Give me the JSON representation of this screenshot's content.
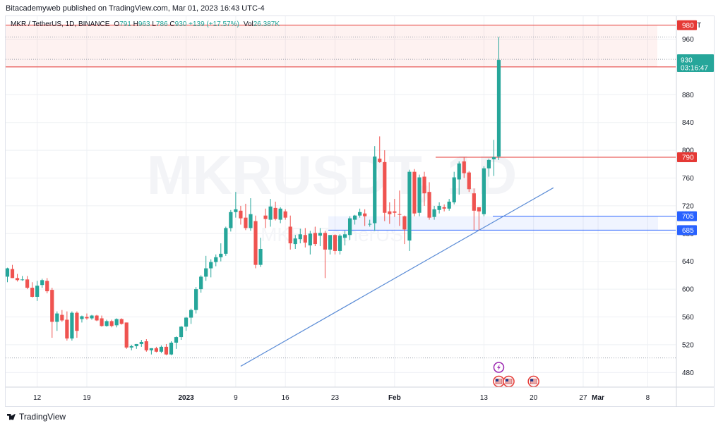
{
  "header": {
    "publish_line": "Bitacademyweb published on TradingView.com, Mar 01, 2023 16:43 UTC-4"
  },
  "legend": {
    "symbol": "MKR / TetherUS, 1D, BINANCE",
    "open_label": "O",
    "open": "791",
    "high_label": "H",
    "high": "963",
    "low_label": "L",
    "low": "786",
    "close_label": "C",
    "close": "930",
    "change": "+139 (+17.57%)",
    "vol_label": "Vol",
    "vol": "26.387K"
  },
  "watermark": {
    "main": "MKRUSDT, 1D",
    "sub": "MKR / TetherUS"
  },
  "branding": {
    "label": "TradingView"
  },
  "colors": {
    "up": "#26a69a",
    "down": "#ef5350",
    "trend": "#5b8cd6",
    "resistance": "#e53935",
    "support": "#2962ff",
    "grid": "#eef0f4"
  },
  "chart_data": {
    "type": "candlestick",
    "currency": "USDT",
    "y_ticks": [
      480,
      520,
      560,
      600,
      640,
      680,
      720,
      760,
      800,
      840,
      880,
      920,
      960
    ],
    "ylim": [
      459,
      993
    ],
    "x_ticks": [
      "12",
      "19",
      "2023",
      "9",
      "16",
      "23",
      "Feb",
      "13",
      "20",
      "27",
      "Mar",
      "8"
    ],
    "last_price": "930",
    "countdown": "03:16:47",
    "levels": [
      {
        "label": "980",
        "value": 980,
        "color": "#e53935",
        "style": "solid",
        "tag": "red"
      },
      {
        "label": "920",
        "value": 920,
        "color": "#e53935",
        "style": "solid",
        "tag": "red"
      },
      {
        "label": "790",
        "value": 790,
        "color": "#e53935",
        "style": "solid",
        "tag": "red"
      },
      {
        "label": "705",
        "value": 705,
        "color": "#2962ff",
        "style": "solid",
        "tag": "blue"
      },
      {
        "label": "685",
        "value": 685,
        "color": "#2962ff",
        "style": "solid",
        "tag": "blue"
      }
    ],
    "dotted_levels": [
      963,
      931,
      501
    ],
    "resistance_zone": [
      920,
      980
    ],
    "support_zone": [
      685,
      705
    ],
    "trendline": {
      "start_bar": 47,
      "start_value": 489,
      "end_bar": 110,
      "end_value": 746
    },
    "candles": [
      {
        "o": 618,
        "h": 631,
        "l": 610,
        "c": 630
      },
      {
        "o": 629,
        "h": 635,
        "l": 616,
        "c": 616
      },
      {
        "o": 616,
        "h": 622,
        "l": 611,
        "c": 613
      },
      {
        "o": 613,
        "h": 619,
        "l": 612,
        "c": 614
      },
      {
        "o": 614,
        "h": 619,
        "l": 600,
        "c": 602
      },
      {
        "o": 602,
        "h": 610,
        "l": 588,
        "c": 589
      },
      {
        "o": 589,
        "h": 612,
        "l": 583,
        "c": 605
      },
      {
        "o": 606,
        "h": 615,
        "l": 602,
        "c": 613
      },
      {
        "o": 612,
        "h": 616,
        "l": 594,
        "c": 597
      },
      {
        "o": 599,
        "h": 602,
        "l": 530,
        "c": 553
      },
      {
        "o": 553,
        "h": 568,
        "l": 540,
        "c": 565
      },
      {
        "o": 563,
        "h": 570,
        "l": 553,
        "c": 555
      },
      {
        "o": 556,
        "h": 568,
        "l": 526,
        "c": 529
      },
      {
        "o": 529,
        "h": 568,
        "l": 526,
        "c": 566
      },
      {
        "o": 566,
        "h": 568,
        "l": 530,
        "c": 540
      },
      {
        "o": 557,
        "h": 562,
        "l": 552,
        "c": 561
      },
      {
        "o": 560,
        "h": 565,
        "l": 556,
        "c": 558
      },
      {
        "o": 558,
        "h": 563,
        "l": 556,
        "c": 562
      },
      {
        "o": 562,
        "h": 563,
        "l": 554,
        "c": 555
      },
      {
        "o": 558,
        "h": 562,
        "l": 546,
        "c": 547
      },
      {
        "o": 547,
        "h": 556,
        "l": 546,
        "c": 554
      },
      {
        "o": 554,
        "h": 556,
        "l": 545,
        "c": 547
      },
      {
        "o": 548,
        "h": 558,
        "l": 545,
        "c": 557
      },
      {
        "o": 557,
        "h": 558,
        "l": 549,
        "c": 550
      },
      {
        "o": 552,
        "h": 552,
        "l": 514,
        "c": 516
      },
      {
        "o": 516,
        "h": 520,
        "l": 512,
        "c": 518
      },
      {
        "o": 518,
        "h": 521,
        "l": 514,
        "c": 521
      },
      {
        "o": 521,
        "h": 527,
        "l": 517,
        "c": 524
      },
      {
        "o": 525,
        "h": 528,
        "l": 510,
        "c": 512
      },
      {
        "o": 512,
        "h": 515,
        "l": 506,
        "c": 515
      },
      {
        "o": 515,
        "h": 517,
        "l": 509,
        "c": 510
      },
      {
        "o": 510,
        "h": 519,
        "l": 508,
        "c": 517
      },
      {
        "o": 517,
        "h": 521,
        "l": 505,
        "c": 506
      },
      {
        "o": 506,
        "h": 525,
        "l": 505,
        "c": 523
      },
      {
        "o": 523,
        "h": 532,
        "l": 514,
        "c": 531
      },
      {
        "o": 531,
        "h": 547,
        "l": 527,
        "c": 546
      },
      {
        "o": 546,
        "h": 560,
        "l": 540,
        "c": 559
      },
      {
        "o": 559,
        "h": 572,
        "l": 550,
        "c": 570
      },
      {
        "o": 570,
        "h": 603,
        "l": 565,
        "c": 600
      },
      {
        "o": 600,
        "h": 620,
        "l": 595,
        "c": 618
      },
      {
        "o": 618,
        "h": 648,
        "l": 612,
        "c": 630
      },
      {
        "o": 630,
        "h": 643,
        "l": 617,
        "c": 639
      },
      {
        "o": 639,
        "h": 650,
        "l": 633,
        "c": 646
      },
      {
        "o": 646,
        "h": 666,
        "l": 640,
        "c": 651
      },
      {
        "o": 651,
        "h": 690,
        "l": 648,
        "c": 688
      },
      {
        "o": 688,
        "h": 714,
        "l": 683,
        "c": 711
      },
      {
        "o": 711,
        "h": 740,
        "l": 703,
        "c": 715
      },
      {
        "o": 713,
        "h": 720,
        "l": 693,
        "c": 702
      },
      {
        "o": 703,
        "h": 723,
        "l": 685,
        "c": 688
      },
      {
        "o": 688,
        "h": 731,
        "l": 684,
        "c": 708
      },
      {
        "o": 698,
        "h": 706,
        "l": 630,
        "c": 635
      },
      {
        "o": 635,
        "h": 674,
        "l": 632,
        "c": 658
      },
      {
        "o": 706,
        "h": 716,
        "l": 688,
        "c": 701
      },
      {
        "o": 700,
        "h": 730,
        "l": 690,
        "c": 719
      },
      {
        "o": 717,
        "h": 726,
        "l": 699,
        "c": 701
      },
      {
        "o": 700,
        "h": 718,
        "l": 695,
        "c": 716
      },
      {
        "o": 712,
        "h": 715,
        "l": 700,
        "c": 703
      },
      {
        "o": 690,
        "h": 706,
        "l": 657,
        "c": 666
      },
      {
        "o": 665,
        "h": 678,
        "l": 658,
        "c": 673
      },
      {
        "o": 672,
        "h": 687,
        "l": 666,
        "c": 679
      },
      {
        "o": 678,
        "h": 688,
        "l": 660,
        "c": 667
      },
      {
        "o": 663,
        "h": 684,
        "l": 650,
        "c": 680
      },
      {
        "o": 681,
        "h": 690,
        "l": 662,
        "c": 665
      },
      {
        "o": 677,
        "h": 688,
        "l": 662,
        "c": 681
      },
      {
        "o": 681,
        "h": 684,
        "l": 616,
        "c": 657
      },
      {
        "o": 657,
        "h": 676,
        "l": 650,
        "c": 678
      },
      {
        "o": 678,
        "h": 679,
        "l": 650,
        "c": 655
      },
      {
        "o": 655,
        "h": 679,
        "l": 650,
        "c": 677
      },
      {
        "o": 674,
        "h": 684,
        "l": 663,
        "c": 679
      },
      {
        "o": 678,
        "h": 705,
        "l": 671,
        "c": 702
      },
      {
        "o": 700,
        "h": 707,
        "l": 693,
        "c": 706
      },
      {
        "o": 706,
        "h": 716,
        "l": 703,
        "c": 711
      },
      {
        "o": 709,
        "h": 715,
        "l": 691,
        "c": 705
      },
      {
        "o": 693,
        "h": 700,
        "l": 690,
        "c": 694
      },
      {
        "o": 695,
        "h": 806,
        "l": 684,
        "c": 791
      },
      {
        "o": 788,
        "h": 820,
        "l": 782,
        "c": 783
      },
      {
        "o": 783,
        "h": 800,
        "l": 698,
        "c": 710
      },
      {
        "o": 712,
        "h": 725,
        "l": 694,
        "c": 708
      },
      {
        "o": 712,
        "h": 730,
        "l": 704,
        "c": 710
      },
      {
        "o": 708,
        "h": 742,
        "l": 691,
        "c": 707
      },
      {
        "o": 705,
        "h": 706,
        "l": 665,
        "c": 686
      },
      {
        "o": 670,
        "h": 772,
        "l": 655,
        "c": 769
      },
      {
        "o": 769,
        "h": 773,
        "l": 705,
        "c": 709
      },
      {
        "o": 710,
        "h": 765,
        "l": 705,
        "c": 761
      },
      {
        "o": 762,
        "h": 769,
        "l": 720,
        "c": 738
      },
      {
        "o": 740,
        "h": 754,
        "l": 700,
        "c": 703
      },
      {
        "o": 704,
        "h": 720,
        "l": 700,
        "c": 715
      },
      {
        "o": 714,
        "h": 725,
        "l": 709,
        "c": 720
      },
      {
        "o": 718,
        "h": 722,
        "l": 712,
        "c": 716
      },
      {
        "o": 716,
        "h": 730,
        "l": 713,
        "c": 726
      },
      {
        "o": 725,
        "h": 769,
        "l": 722,
        "c": 761
      },
      {
        "o": 758,
        "h": 784,
        "l": 736,
        "c": 781
      },
      {
        "o": 784,
        "h": 790,
        "l": 760,
        "c": 767
      },
      {
        "o": 768,
        "h": 770,
        "l": 740,
        "c": 744
      },
      {
        "o": 738,
        "h": 745,
        "l": 685,
        "c": 713
      },
      {
        "o": 718,
        "h": 718,
        "l": 685,
        "c": 712
      },
      {
        "o": 708,
        "h": 777,
        "l": 705,
        "c": 774
      },
      {
        "o": 774,
        "h": 788,
        "l": 762,
        "c": 786
      },
      {
        "o": 787,
        "h": 815,
        "l": 763,
        "c": 790
      },
      {
        "o": 791,
        "h": 963,
        "l": 786,
        "c": 930
      }
    ],
    "markers": [
      {
        "type": "lightning",
        "bar": 99,
        "row": 1
      },
      {
        "type": "flag",
        "bar": 99,
        "row": 2
      },
      {
        "type": "flag",
        "bar": 101,
        "row": 2
      },
      {
        "type": "flag",
        "bar": 106,
        "row": 2
      }
    ]
  }
}
